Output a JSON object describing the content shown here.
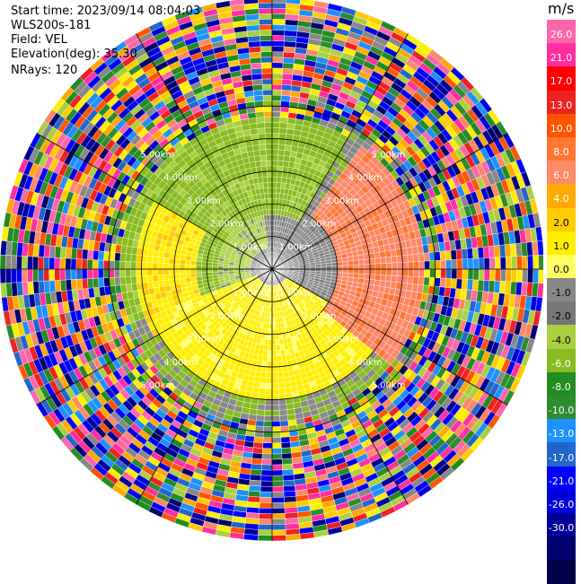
{
  "header": {
    "start_time": "Start time: 2023/09/14 08:04:03",
    "instrument": "WLS200s-181",
    "field": "Field: VEL",
    "elevation": "Elevation(deg): 35.30",
    "nrays": "NRays: 120"
  },
  "colorbar": {
    "unit": "m/s",
    "colors": [
      "#e0e0e0",
      "#ff66aa",
      "#ff2fa0",
      "#ff0000",
      "#ee2222",
      "#ff5500",
      "#ff7733",
      "#ff8866",
      "#ffaa00",
      "#ffcc00",
      "#ffee00",
      "#ffff66",
      "#888888",
      "#777777",
      "#aad040",
      "#88bb20",
      "#228b22",
      "#2e8b2e",
      "#1e90ff",
      "#2266cc",
      "#0000ff",
      "#0000dd",
      "#000099",
      "#00006e",
      "#000044"
    ],
    "tick_labels": [
      "26.0",
      "21.0",
      "17.0",
      "13.0",
      "10.0",
      "8.0",
      "6.0",
      "4.0",
      "2.0",
      "1.0",
      "0.0",
      "-1.0",
      "-2.0",
      "-4.0",
      "-6.0",
      "-8.0",
      "-10.0",
      "-13.0",
      "-17.0",
      "-21.0",
      "-26.0",
      "-30.0"
    ]
  },
  "chart_data": {
    "type": "heatmap",
    "projection": "polar PPI",
    "field": "VEL",
    "units": "m/s",
    "vmin": -30.0,
    "vmax": 26.0,
    "n_rays": 120,
    "elevation_deg": 35.3,
    "range_rings_km": [
      1,
      2,
      3,
      4,
      5
    ],
    "ring_labels": [
      "1.00km",
      "2.00km",
      "3.00km",
      "4.00km",
      "5.00km"
    ],
    "spokes": 12,
    "max_range_km": 5.0,
    "regions": [
      {
        "description": "near-zero velocity (gray) out to about 1.6 km",
        "range_km": [
          0.0,
          1.6
        ],
        "value": 0.0
      },
      {
        "description": "weak negative velocity (green) band west/north",
        "range_km": [
          1.0,
          3.0
        ],
        "value": -2.0
      },
      {
        "description": "positive velocity (yellow) band south/west",
        "range_km": [
          0.3,
          2.8
        ],
        "value": 3.0
      },
      {
        "description": "strong positive velocity (orange) east",
        "range_km": [
          1.2,
          2.8
        ],
        "value": 8.0
      },
      {
        "description": "noisy/random velocities",
        "range_km": [
          2.8,
          5.0
        ],
        "value": null
      }
    ]
  }
}
